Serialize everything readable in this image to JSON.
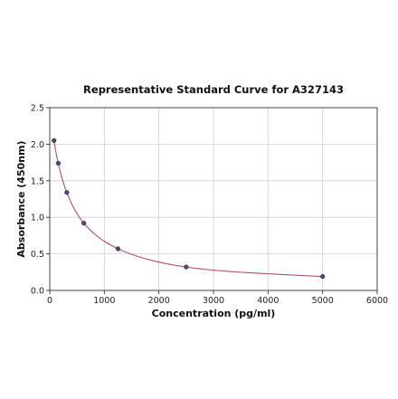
{
  "chart_data": {
    "type": "scatter",
    "title": "Representative Standard Curve for A327143",
    "xlabel": "Concentration (pg/ml)",
    "ylabel": "Absorbance (450nm)",
    "xlim": [
      0,
      6000
    ],
    "ylim": [
      0,
      2.5
    ],
    "xticks": [
      0,
      1000,
      2000,
      3000,
      4000,
      5000,
      6000
    ],
    "yticks": [
      "0.0",
      "0.5",
      "1.0",
      "1.5",
      "2.0",
      "2.5"
    ],
    "grid": true,
    "legend": "none",
    "series": [
      {
        "x": [
          78,
          156,
          312,
          625,
          1250,
          2500,
          5000
        ],
        "y": [
          2.05,
          1.74,
          1.34,
          0.92,
          0.57,
          0.32,
          0.19
        ],
        "marker_color": "#4a4a72",
        "fit_line": true,
        "fit_color": "#b0506e"
      }
    ]
  }
}
